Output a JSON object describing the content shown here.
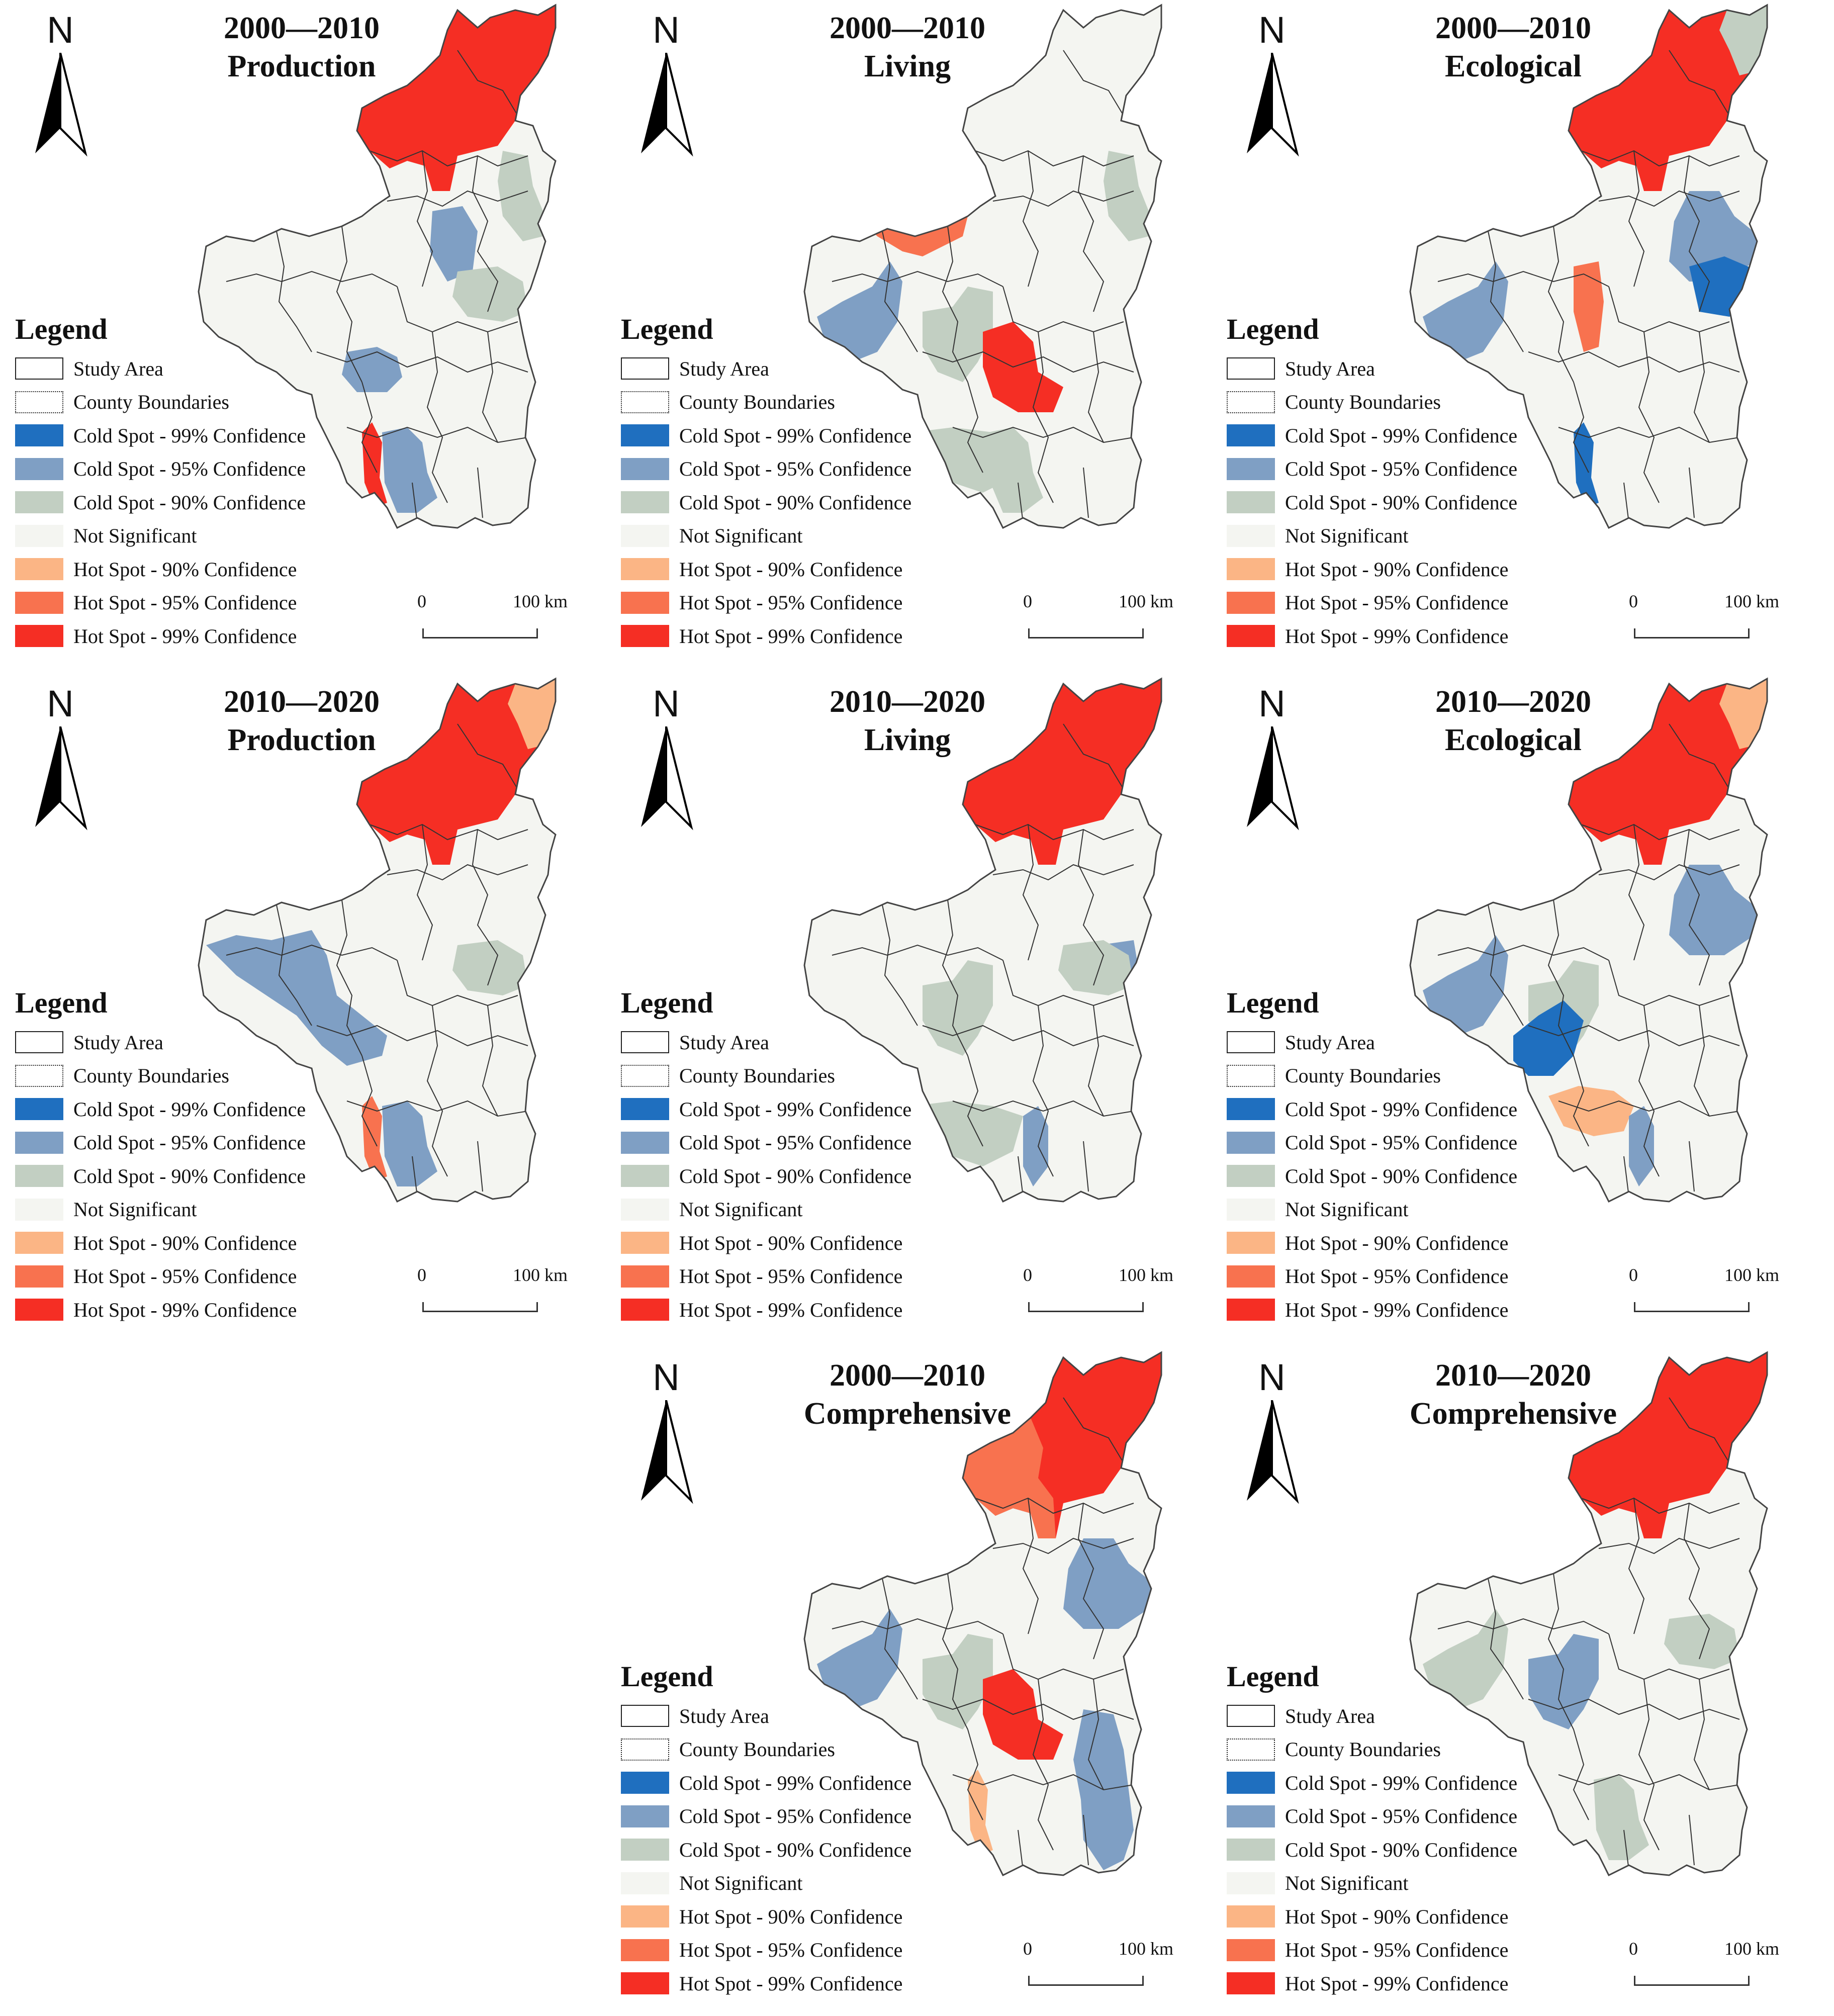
{
  "north_label": "N",
  "legend": {
    "title": "Legend",
    "items": [
      {
        "label": "Study Area",
        "style": "outline",
        "color": "#ffffff"
      },
      {
        "label": "County Boundaries",
        "style": "dashed",
        "color": "#ffffff"
      },
      {
        "label": "Cold Spot - 99% Confidence",
        "style": "fill",
        "color": "#1f6fbf"
      },
      {
        "label": "Cold Spot - 95% Confidence",
        "style": "fill",
        "color": "#7f9fc4"
      },
      {
        "label": "Cold Spot - 90% Confidence",
        "style": "fill",
        "color": "#c2cfc2"
      },
      {
        "label": "Not Significant",
        "style": "fill",
        "color": "#f4f5f1"
      },
      {
        "label": "Hot Spot - 90% Confidence",
        "style": "fill",
        "color": "#fbb585"
      },
      {
        "label": "Hot Spot - 95% Confidence",
        "style": "fill",
        "color": "#f8724f"
      },
      {
        "label": "Hot Spot - 99% Confidence",
        "style": "fill",
        "color": "#f52e24"
      }
    ]
  },
  "scale_bar": {
    "zero": "0",
    "max": "100 km"
  },
  "panels": [
    {
      "period": "2000—2010",
      "dimension": "Production",
      "zones": [
        {
          "shape": "north",
          "class": "hot99"
        },
        {
          "shape": "ne_strip",
          "class": "cold90"
        },
        {
          "shape": "mid_north",
          "class": "cold95"
        },
        {
          "shape": "east_mid",
          "class": "cold90"
        },
        {
          "shape": "central_blob",
          "class": "cold95"
        },
        {
          "shape": "south_west",
          "class": "hot99"
        },
        {
          "shape": "south_east",
          "class": "cold95"
        }
      ]
    },
    {
      "period": "2000—2010",
      "dimension": "Living",
      "zones": [
        {
          "shape": "west_cross",
          "class": "hot95"
        },
        {
          "shape": "west",
          "class": "cold95"
        },
        {
          "shape": "central_west",
          "class": "cold90"
        },
        {
          "shape": "central",
          "class": "hot99"
        },
        {
          "shape": "ne_strip",
          "class": "cold90"
        },
        {
          "shape": "south_east",
          "class": "cold90"
        },
        {
          "shape": "south_band",
          "class": "cold90"
        }
      ]
    },
    {
      "period": "2000—2010",
      "dimension": "Ecological",
      "zones": [
        {
          "shape": "north",
          "class": "hot99"
        },
        {
          "shape": "north_tip",
          "class": "cold90"
        },
        {
          "shape": "ne_block",
          "class": "cold95"
        },
        {
          "shape": "east_dark",
          "class": "cold99"
        },
        {
          "shape": "west",
          "class": "cold95"
        },
        {
          "shape": "central_strip",
          "class": "hot95"
        },
        {
          "shape": "south_west",
          "class": "cold99"
        }
      ]
    },
    {
      "period": "2010—2020",
      "dimension": "Production",
      "zones": [
        {
          "shape": "north",
          "class": "hot99"
        },
        {
          "shape": "north_tip",
          "class": "hot90"
        },
        {
          "shape": "west_diag",
          "class": "cold95"
        },
        {
          "shape": "east_mid",
          "class": "cold90"
        },
        {
          "shape": "south_west",
          "class": "hot95"
        },
        {
          "shape": "south_east",
          "class": "cold95"
        }
      ]
    },
    {
      "period": "2010—2020",
      "dimension": "Living",
      "zones": [
        {
          "shape": "north",
          "class": "hot99"
        },
        {
          "shape": "central_west",
          "class": "cold90"
        },
        {
          "shape": "ne_small",
          "class": "cold95"
        },
        {
          "shape": "east_mid",
          "class": "cold90"
        },
        {
          "shape": "south_band",
          "class": "cold90"
        },
        {
          "shape": "south_strip",
          "class": "cold95"
        }
      ]
    },
    {
      "period": "2010—2020",
      "dimension": "Ecological",
      "zones": [
        {
          "shape": "north",
          "class": "hot99"
        },
        {
          "shape": "north_tip",
          "class": "hot90"
        },
        {
          "shape": "west",
          "class": "cold95"
        },
        {
          "shape": "central_west",
          "class": "cold90"
        },
        {
          "shape": "central_dark",
          "class": "cold99"
        },
        {
          "shape": "ne_block",
          "class": "cold95"
        },
        {
          "shape": "south_blob",
          "class": "hot90"
        },
        {
          "shape": "south_strip",
          "class": "cold95"
        }
      ]
    },
    {
      "period": "2000—2010",
      "dimension": "Comprehensive",
      "zones": [
        {
          "shape": "north",
          "class": "hot99"
        },
        {
          "shape": "north_west_band",
          "class": "hot95"
        },
        {
          "shape": "ne_block",
          "class": "cold95"
        },
        {
          "shape": "west",
          "class": "cold95"
        },
        {
          "shape": "central_west",
          "class": "cold90"
        },
        {
          "shape": "central",
          "class": "hot99"
        },
        {
          "shape": "east_long",
          "class": "cold95"
        },
        {
          "shape": "south_west",
          "class": "hot90"
        }
      ]
    },
    {
      "period": "2010—2020",
      "dimension": "Comprehensive",
      "zones": [
        {
          "shape": "north",
          "class": "hot99"
        },
        {
          "shape": "central_west",
          "class": "cold95"
        },
        {
          "shape": "west",
          "class": "cold90"
        },
        {
          "shape": "east_mid",
          "class": "cold90"
        },
        {
          "shape": "south_east",
          "class": "cold90"
        }
      ]
    }
  ]
}
